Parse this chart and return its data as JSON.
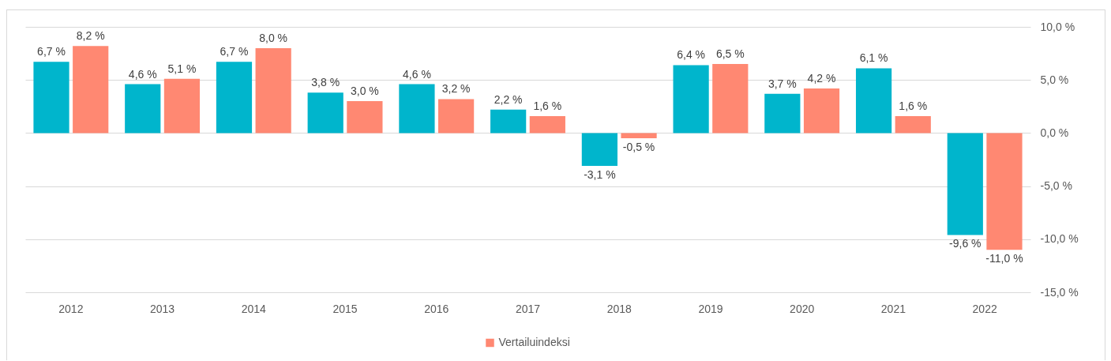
{
  "chart_data": {
    "type": "bar",
    "categories": [
      "2012",
      "2013",
      "2014",
      "2015",
      "2016",
      "2017",
      "2018",
      "2019",
      "2020",
      "2021",
      "2022"
    ],
    "series": [
      {
        "color": "#00b5cc",
        "values": [
          6.7,
          4.6,
          6.7,
          3.8,
          4.6,
          2.2,
          -3.1,
          6.4,
          3.7,
          6.1,
          -9.6
        ],
        "value_labels": [
          "6,7 %",
          "4,6 %",
          "6,7 %",
          "3,8 %",
          "4,6 %",
          "2,2 %",
          "-3,1 %",
          "6,4 %",
          "3,7 %",
          "6,1 %",
          "-9,6 %"
        ]
      },
      {
        "name": "Vertailuindeksi",
        "color": "#ff8872",
        "values": [
          8.2,
          5.1,
          8.0,
          3.0,
          3.2,
          1.6,
          -0.5,
          6.5,
          4.2,
          1.6,
          -11.0
        ],
        "value_labels": [
          "8,2 %",
          "5,1 %",
          "8,0 %",
          "3,0 %",
          "3,2 %",
          "1,6 %",
          "-0,5 %",
          "6,5 %",
          "4,2 %",
          "1,6 %",
          "-11,0 %"
        ]
      }
    ],
    "ylim": [
      -15,
      10
    ],
    "yticks": [
      {
        "value": -15,
        "label": "-15,0 %"
      },
      {
        "value": -10,
        "label": "-10,0 %"
      },
      {
        "value": -5,
        "label": "-5,0 %"
      },
      {
        "value": 0,
        "label": "0,0 %"
      },
      {
        "value": 5,
        "label": "5,0 %"
      },
      {
        "value": 10,
        "label": "10,0 %"
      }
    ],
    "grid": "y",
    "legend": "bottom"
  }
}
